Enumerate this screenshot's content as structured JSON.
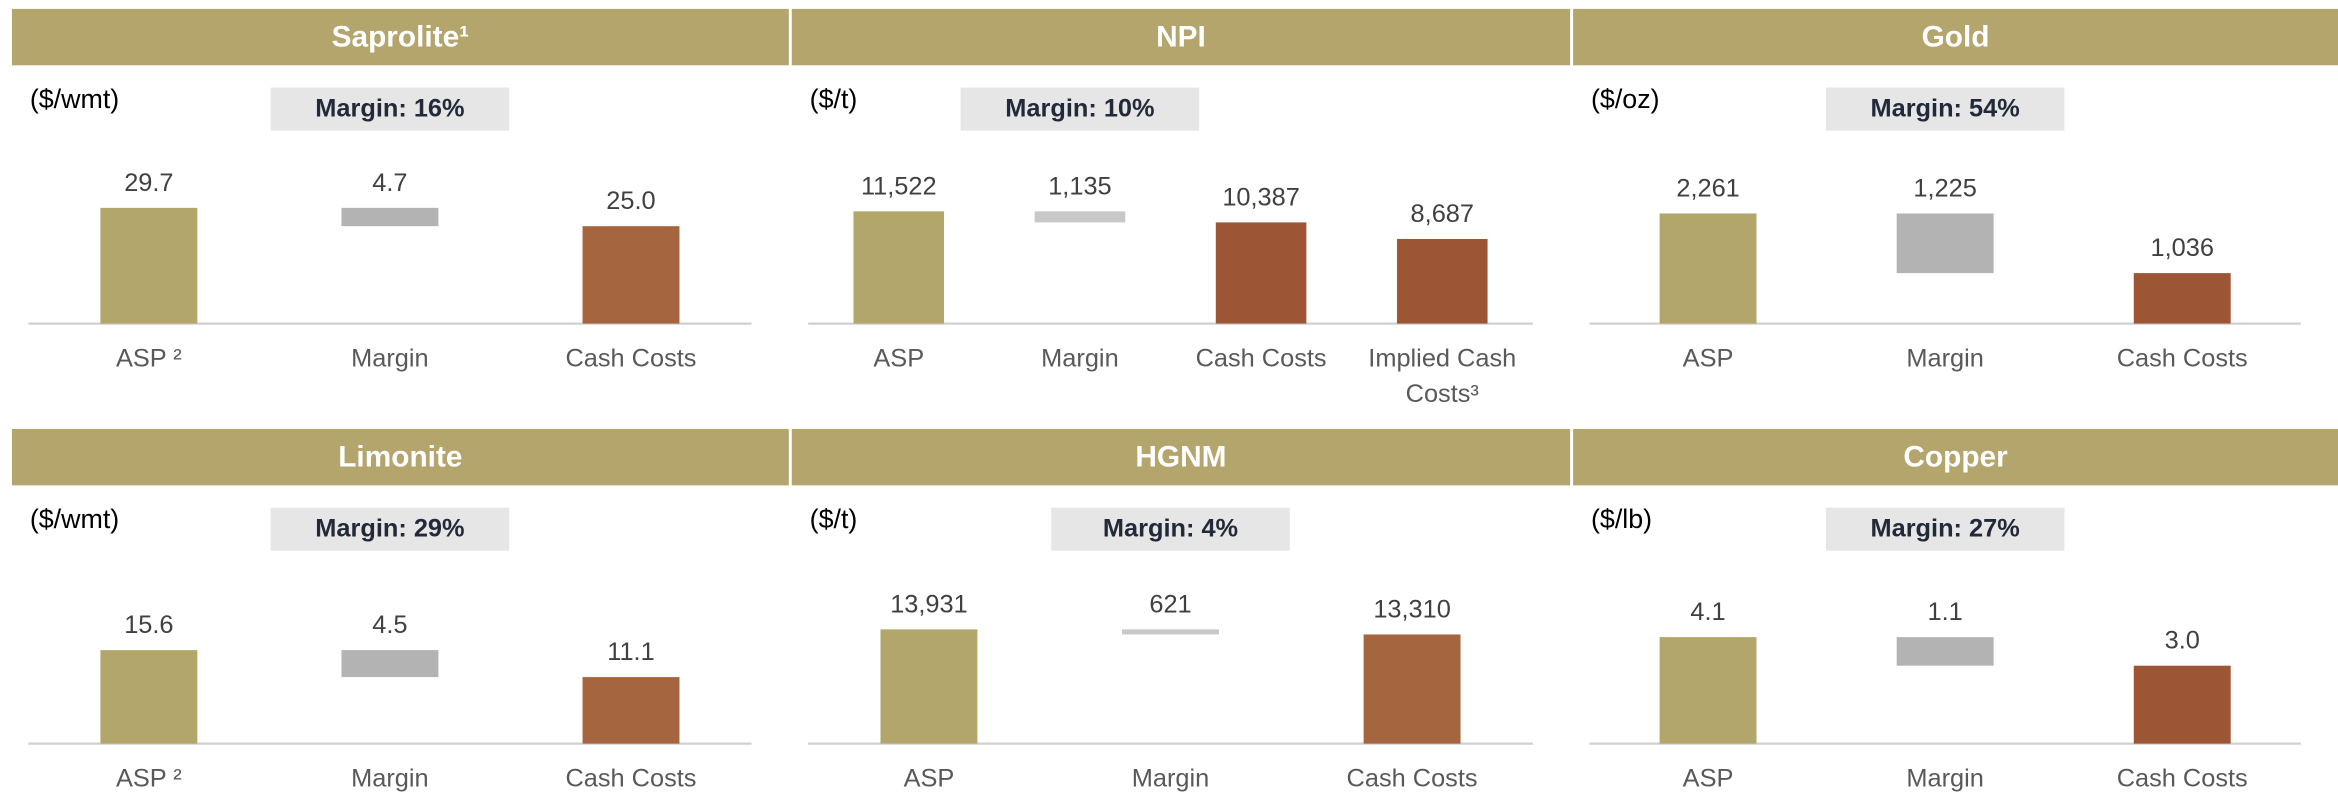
{
  "chart_data": [
    {
      "type": "waterfall",
      "title": "Saprolite¹",
      "unit": "($/wmt)",
      "margin_label": "Margin: 16%",
      "categories": [
        "ASP ²",
        "Margin",
        "Cash Costs"
      ],
      "values": [
        29.7,
        4.7,
        25.0
      ],
      "value_labels": [
        "29.7",
        "4.7",
        "25.0"
      ],
      "roles": [
        "total",
        "margin",
        "cost"
      ],
      "colors": [
        "#b3a66b",
        "#b3b3b3",
        "#a5663f"
      ],
      "ylim": [
        0,
        40
      ]
    },
    {
      "type": "waterfall",
      "title": "NPI",
      "unit": "($/t)",
      "margin_label": "Margin: 10%",
      "categories": [
        "ASP",
        "Margin",
        "Cash Costs",
        "Implied Cash Costs³"
      ],
      "values": [
        11522,
        1135,
        10387,
        8687
      ],
      "value_labels": [
        "11,522",
        "1,135",
        "10,387",
        "8,687"
      ],
      "roles": [
        "total",
        "margin",
        "cost",
        "cost"
      ],
      "colors": [
        "#b3a66b",
        "#c8c8c8",
        "#9c5535",
        "#9c5535"
      ],
      "ylim": [
        0,
        16000
      ]
    },
    {
      "type": "waterfall",
      "title": "Gold",
      "unit": "($/oz)",
      "margin_label": "Margin: 54%",
      "categories": [
        "ASP",
        "Margin",
        "Cash Costs"
      ],
      "values": [
        2261,
        1225,
        1036
      ],
      "value_labels": [
        "2,261",
        "1,225",
        "1,036"
      ],
      "roles": [
        "total",
        "margin",
        "cost"
      ],
      "colors": [
        "#b3a66b",
        "#b3b3b3",
        "#9c5535"
      ],
      "ylim": [
        0,
        3200
      ]
    },
    {
      "type": "waterfall",
      "title": "Limonite",
      "unit": "($/wmt)",
      "margin_label": "Margin: 29%",
      "categories": [
        "ASP ²",
        "Margin",
        "Cash Costs"
      ],
      "values": [
        15.6,
        4.5,
        11.1
      ],
      "value_labels": [
        "15.6",
        "4.5",
        "11.1"
      ],
      "roles": [
        "total",
        "margin",
        "cost"
      ],
      "colors": [
        "#b3a66b",
        "#b3b3b3",
        "#a5663f"
      ],
      "ylim": [
        0,
        26
      ]
    },
    {
      "type": "waterfall",
      "title": "HGNM",
      "unit": "($/t)",
      "margin_label": "Margin: 4%",
      "categories": [
        "ASP",
        "Margin",
        "Cash Costs"
      ],
      "values": [
        13931,
        621,
        13310
      ],
      "value_labels": [
        "13,931",
        "621",
        "13,310"
      ],
      "roles": [
        "total",
        "margin",
        "cost"
      ],
      "colors": [
        "#b3a66b",
        "#c8c8c8",
        "#a5663f"
      ],
      "ylim": [
        0,
        19000
      ]
    },
    {
      "type": "waterfall",
      "title": "Copper",
      "unit": "($/lb)",
      "margin_label": "Margin: 27%",
      "categories": [
        "ASP",
        "Margin",
        "Cash Costs"
      ],
      "values": [
        4.1,
        1.1,
        3.0
      ],
      "value_labels": [
        "4.1",
        "1.1",
        "3.0"
      ],
      "roles": [
        "total",
        "margin",
        "cost"
      ],
      "colors": [
        "#b3a66b",
        "#b3b3b3",
        "#9c5535"
      ],
      "ylim": [
        0,
        6
      ]
    }
  ]
}
